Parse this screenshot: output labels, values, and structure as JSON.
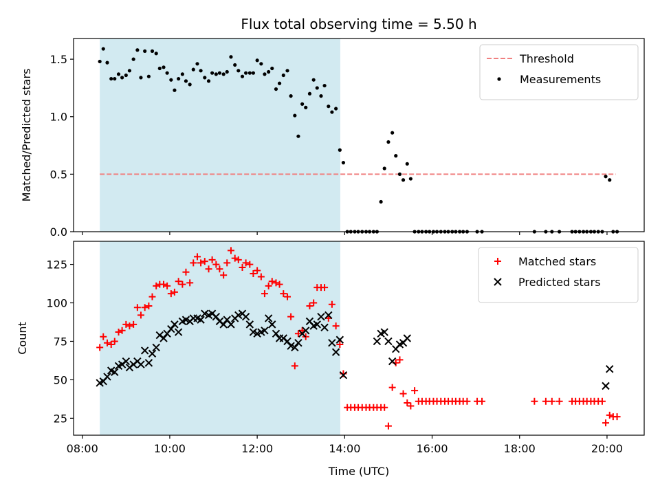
{
  "figure": {
    "title": "Flux total observing time = 5.50 h",
    "xlabel": "Time (UTC)",
    "x_ticks": [
      "08:00",
      "10:00",
      "12:00",
      "14:00",
      "16:00",
      "18:00",
      "20:00"
    ],
    "x_tick_hours": [
      8,
      10,
      12,
      14,
      16,
      18,
      20
    ],
    "x_range_hours": [
      7.8,
      20.85
    ],
    "shaded_span_hours": [
      8.4,
      13.9
    ],
    "shade_color": "#add8e6"
  },
  "chart_data": [
    {
      "type": "scatter",
      "ylabel": "Matched/Predicted stars",
      "ylim": [
        0,
        1.68
      ],
      "y_ticks": [
        "0.0",
        "0.5",
        "1.0",
        "1.5"
      ],
      "y_tick_values": [
        0,
        0.5,
        1.0,
        1.5
      ],
      "legend_position": "top-right",
      "threshold": {
        "name": "Threshold",
        "value": 0.5,
        "x_range": [
          8.4,
          20.2
        ],
        "color": "#f08080"
      },
      "series": [
        {
          "name": "Measurements",
          "color": "#000000",
          "x": [
            8.4,
            8.48,
            8.57,
            8.66,
            8.74,
            8.83,
            8.91,
            9.0,
            9.08,
            9.17,
            9.26,
            9.34,
            9.43,
            9.52,
            9.6,
            9.69,
            9.77,
            9.86,
            9.94,
            10.03,
            10.11,
            10.2,
            10.29,
            10.37,
            10.46,
            10.54,
            10.63,
            10.71,
            10.8,
            10.89,
            10.97,
            11.06,
            11.14,
            11.23,
            11.31,
            11.4,
            11.49,
            11.57,
            11.66,
            11.74,
            11.83,
            11.91,
            12.0,
            12.09,
            12.17,
            12.26,
            12.34,
            12.43,
            12.51,
            12.6,
            12.69,
            12.77,
            12.86,
            12.94,
            13.03,
            13.11,
            13.2,
            13.29,
            13.37,
            13.46,
            13.54,
            13.63,
            13.71,
            13.8,
            13.89,
            13.97,
            14.06,
            14.14,
            14.23,
            14.31,
            14.4,
            14.49,
            14.57,
            14.66,
            14.74,
            14.83,
            14.91,
            15.0,
            15.09,
            15.17,
            15.26,
            15.34,
            15.43,
            15.51,
            15.6,
            15.69,
            15.77,
            15.86,
            15.94,
            16.03,
            16.11,
            16.2,
            16.29,
            16.37,
            16.46,
            16.54,
            16.63,
            16.71,
            16.8,
            17.03,
            17.14,
            18.34,
            18.6,
            18.74,
            18.91,
            19.2,
            19.28,
            19.37,
            19.46,
            19.54,
            19.63,
            19.71,
            19.8,
            19.89,
            19.97,
            20.06,
            20.14,
            20.23
          ],
          "y": [
            1.48,
            1.59,
            1.47,
            1.33,
            1.33,
            1.37,
            1.34,
            1.36,
            1.4,
            1.5,
            1.58,
            1.34,
            1.57,
            1.35,
            1.57,
            1.55,
            1.42,
            1.43,
            1.38,
            1.32,
            1.23,
            1.33,
            1.37,
            1.31,
            1.28,
            1.41,
            1.46,
            1.4,
            1.34,
            1.31,
            1.38,
            1.37,
            1.38,
            1.37,
            1.39,
            1.52,
            1.45,
            1.4,
            1.35,
            1.38,
            1.38,
            1.38,
            1.49,
            1.46,
            1.37,
            1.39,
            1.42,
            1.24,
            1.29,
            1.36,
            1.4,
            1.18,
            1.01,
            0.83,
            1.11,
            1.08,
            1.2,
            1.32,
            1.25,
            1.18,
            1.27,
            1.09,
            1.04,
            1.07,
            0.71,
            0.6,
            0.0,
            0.0,
            0.0,
            0.0,
            0.0,
            0.0,
            0.0,
            0.0,
            0.0,
            0.26,
            0.55,
            0.78,
            0.86,
            0.66,
            0.5,
            0.45,
            0.59,
            0.46,
            0.0,
            0.0,
            0.0,
            0.0,
            0.0,
            0.0,
            0.0,
            0.0,
            0.0,
            0.0,
            0.0,
            0.0,
            0.0,
            0.0,
            0.0,
            0.0,
            0.0,
            0.0,
            0.0,
            0.0,
            0.0,
            0.0,
            0.0,
            0.0,
            0.0,
            0.0,
            0.0,
            0.0,
            0.0,
            0.0,
            0.48,
            0.45,
            0.0,
            0.0
          ]
        }
      ]
    },
    {
      "type": "scatter",
      "ylabel": "Count",
      "ylim": [
        14,
        140
      ],
      "y_ticks": [
        "25",
        "50",
        "75",
        "100",
        "125"
      ],
      "y_tick_values": [
        25,
        50,
        75,
        100,
        125
      ],
      "legend_position": "top-right",
      "series": [
        {
          "name": "Matched stars",
          "marker": "plus",
          "color": "#ff0000",
          "x": [
            8.4,
            8.48,
            8.57,
            8.66,
            8.74,
            8.83,
            8.91,
            9.0,
            9.08,
            9.17,
            9.26,
            9.34,
            9.43,
            9.52,
            9.6,
            9.69,
            9.77,
            9.86,
            9.94,
            10.03,
            10.11,
            10.2,
            10.29,
            10.37,
            10.46,
            10.54,
            10.63,
            10.71,
            10.8,
            10.89,
            10.97,
            11.06,
            11.14,
            11.23,
            11.31,
            11.4,
            11.49,
            11.57,
            11.66,
            11.74,
            11.83,
            11.91,
            12.0,
            12.09,
            12.17,
            12.26,
            12.34,
            12.43,
            12.51,
            12.6,
            12.69,
            12.77,
            12.86,
            12.94,
            13.03,
            13.11,
            13.2,
            13.29,
            13.37,
            13.46,
            13.54,
            13.63,
            13.71,
            13.8,
            13.89,
            13.97,
            14.06,
            14.14,
            14.23,
            14.31,
            14.4,
            14.49,
            14.57,
            14.66,
            14.74,
            14.83,
            14.91,
            15.0,
            15.09,
            15.17,
            15.26,
            15.34,
            15.43,
            15.51,
            15.6,
            15.69,
            15.77,
            15.86,
            15.94,
            16.03,
            16.11,
            16.2,
            16.29,
            16.37,
            16.46,
            16.54,
            16.63,
            16.71,
            16.8,
            17.03,
            17.14,
            18.34,
            18.6,
            18.74,
            18.91,
            19.2,
            19.28,
            19.37,
            19.46,
            19.54,
            19.63,
            19.71,
            19.8,
            19.89,
            19.97,
            20.06,
            20.14,
            20.23
          ],
          "y": [
            71,
            78,
            74,
            73,
            75,
            81,
            82,
            86,
            85,
            86,
            97,
            92,
            97,
            98,
            104,
            111,
            112,
            112,
            111,
            106,
            107,
            114,
            112,
            120,
            113,
            126,
            130,
            126,
            127,
            122,
            128,
            125,
            122,
            118,
            126,
            134,
            129,
            128,
            123,
            126,
            125,
            119,
            121,
            117,
            106,
            111,
            114,
            113,
            112,
            106,
            104,
            91,
            59,
            80,
            82,
            78,
            98,
            100,
            110,
            110,
            110,
            90,
            99,
            85,
            73,
            54,
            32,
            32,
            32,
            32,
            32,
            32,
            32,
            32,
            32,
            32,
            32,
            20,
            45,
            61,
            63,
            41,
            35,
            33,
            43,
            36,
            36,
            36,
            36,
            36,
            36,
            36,
            36,
            36,
            36,
            36,
            36,
            36,
            36,
            36,
            36,
            36,
            36,
            36,
            36,
            36,
            36,
            36,
            36,
            36,
            36,
            36,
            36,
            36,
            22,
            27,
            26,
            26
          ]
        },
        {
          "name": "Predicted stars",
          "marker": "x",
          "color": "#000000",
          "x": [
            8.4,
            8.48,
            8.57,
            8.66,
            8.74,
            8.83,
            8.91,
            9.0,
            9.08,
            9.17,
            9.26,
            9.34,
            9.43,
            9.52,
            9.6,
            9.69,
            9.77,
            9.86,
            9.94,
            10.03,
            10.11,
            10.2,
            10.29,
            10.37,
            10.46,
            10.54,
            10.63,
            10.71,
            10.8,
            10.89,
            10.97,
            11.06,
            11.14,
            11.23,
            11.31,
            11.4,
            11.49,
            11.57,
            11.66,
            11.74,
            11.83,
            11.91,
            12.0,
            12.09,
            12.17,
            12.26,
            12.34,
            12.43,
            12.51,
            12.6,
            12.69,
            12.77,
            12.86,
            12.94,
            13.03,
            13.11,
            13.2,
            13.29,
            13.37,
            13.46,
            13.54,
            13.63,
            13.71,
            13.8,
            13.89,
            13.97,
            14.74,
            14.83,
            14.91,
            15.0,
            15.09,
            15.17,
            15.26,
            15.34,
            15.43,
            19.97,
            20.06
          ],
          "y": [
            48,
            49,
            52,
            56,
            55,
            59,
            60,
            62,
            58,
            60,
            62,
            60,
            69,
            61,
            67,
            71,
            79,
            77,
            80,
            83,
            86,
            81,
            88,
            89,
            88,
            90,
            90,
            89,
            93,
            92,
            93,
            91,
            88,
            86,
            89,
            86,
            90,
            92,
            93,
            91,
            86,
            81,
            80,
            81,
            82,
            90,
            86,
            80,
            77,
            77,
            75,
            72,
            71,
            74,
            80,
            82,
            88,
            85,
            86,
            91,
            84,
            92,
            74,
            68,
            76,
            53,
            75,
            80,
            81,
            75,
            62,
            70,
            73,
            74,
            77,
            46,
            57
          ]
        }
      ]
    }
  ]
}
